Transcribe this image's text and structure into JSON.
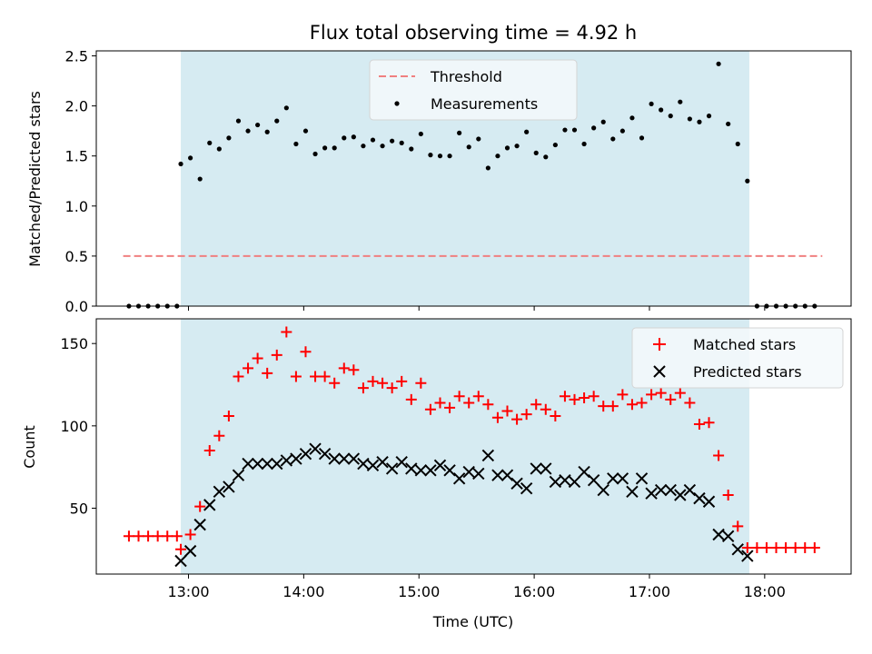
{
  "chart_data": [
    {
      "type": "scatter",
      "title": "Flux total observing time = 4.92 h",
      "xlabel": "",
      "ylabel": "Matched/Predicted stars",
      "xlim": [
        "12:12",
        "18:45"
      ],
      "ylim": [
        0,
        2.55
      ],
      "yticks": [
        "0.0",
        "0.5",
        "1.0",
        "1.5",
        "2.0",
        "2.5"
      ],
      "legend_position": "upper-center",
      "highlight_span": {
        "start": "12:56",
        "end": "17:52",
        "color": "#add8e6"
      },
      "threshold": {
        "name": "Threshold",
        "value": 0.5,
        "x_start": "12:26",
        "x_end": "18:30",
        "color": "#f08080",
        "style": "dashed"
      },
      "series": [
        {
          "name": "Measurements",
          "color": "#000000",
          "marker": "dot",
          "points": [
            [
              "12:29",
              0
            ],
            [
              "12:34",
              0
            ],
            [
              "12:39",
              0
            ],
            [
              "12:44",
              0
            ],
            [
              "12:49",
              0
            ],
            [
              "12:54",
              0
            ],
            [
              "12:56",
              1.42
            ],
            [
              "13:01",
              1.48
            ],
            [
              "13:06",
              1.27
            ],
            [
              "13:11",
              1.63
            ],
            [
              "13:16",
              1.57
            ],
            [
              "13:21",
              1.68
            ],
            [
              "13:26",
              1.85
            ],
            [
              "13:31",
              1.75
            ],
            [
              "13:36",
              1.81
            ],
            [
              "13:41",
              1.74
            ],
            [
              "13:46",
              1.85
            ],
            [
              "13:51",
              1.98
            ],
            [
              "13:56",
              1.62
            ],
            [
              "14:01",
              1.75
            ],
            [
              "14:06",
              1.52
            ],
            [
              "14:11",
              1.58
            ],
            [
              "14:16",
              1.58
            ],
            [
              "14:21",
              1.68
            ],
            [
              "14:26",
              1.69
            ],
            [
              "14:31",
              1.6
            ],
            [
              "14:36",
              1.66
            ],
            [
              "14:41",
              1.6
            ],
            [
              "14:46",
              1.65
            ],
            [
              "14:51",
              1.63
            ],
            [
              "14:56",
              1.57
            ],
            [
              "15:01",
              1.72
            ],
            [
              "15:06",
              1.51
            ],
            [
              "15:11",
              1.5
            ],
            [
              "15:16",
              1.5
            ],
            [
              "15:21",
              1.73
            ],
            [
              "15:26",
              1.59
            ],
            [
              "15:31",
              1.67
            ],
            [
              "15:36",
              1.38
            ],
            [
              "15:41",
              1.5
            ],
            [
              "15:46",
              1.58
            ],
            [
              "15:51",
              1.6
            ],
            [
              "15:56",
              1.74
            ],
            [
              "16:01",
              1.53
            ],
            [
              "16:06",
              1.49
            ],
            [
              "16:11",
              1.61
            ],
            [
              "16:16",
              1.76
            ],
            [
              "16:21",
              1.76
            ],
            [
              "16:26",
              1.62
            ],
            [
              "16:31",
              1.78
            ],
            [
              "16:36",
              1.84
            ],
            [
              "16:41",
              1.67
            ],
            [
              "16:46",
              1.75
            ],
            [
              "16:51",
              1.88
            ],
            [
              "16:56",
              1.68
            ],
            [
              "17:01",
              2.02
            ],
            [
              "17:06",
              1.96
            ],
            [
              "17:11",
              1.9
            ],
            [
              "17:16",
              2.04
            ],
            [
              "17:21",
              1.87
            ],
            [
              "17:26",
              1.84
            ],
            [
              "17:31",
              1.9
            ],
            [
              "17:36",
              2.42
            ],
            [
              "17:41",
              1.82
            ],
            [
              "17:46",
              1.62
            ],
            [
              "17:51",
              1.25
            ],
            [
              "17:56",
              0
            ],
            [
              "18:01",
              0
            ],
            [
              "18:06",
              0
            ],
            [
              "18:11",
              0
            ],
            [
              "18:16",
              0
            ],
            [
              "18:21",
              0
            ],
            [
              "18:26",
              0
            ]
          ]
        }
      ]
    },
    {
      "type": "scatter",
      "title": "",
      "xlabel": "Time (UTC)",
      "ylabel": "Count",
      "xlim": [
        "12:12",
        "18:45"
      ],
      "ylim": [
        10,
        165
      ],
      "yticks": [
        "50",
        "100",
        "150"
      ],
      "xticks": [
        "13:00",
        "14:00",
        "15:00",
        "16:00",
        "17:00",
        "18:00"
      ],
      "legend_position": "upper-right",
      "highlight_span": {
        "start": "12:56",
        "end": "17:52",
        "color": "#add8e6"
      },
      "series": [
        {
          "name": "Matched stars",
          "color": "#ff0000",
          "marker": "plus",
          "points": [
            [
              "12:29",
              33
            ],
            [
              "12:34",
              33
            ],
            [
              "12:39",
              33
            ],
            [
              "12:44",
              33
            ],
            [
              "12:49",
              33
            ],
            [
              "12:54",
              33
            ],
            [
              "12:56",
              25
            ],
            [
              "13:01",
              34
            ],
            [
              "13:06",
              51
            ],
            [
              "13:11",
              85
            ],
            [
              "13:16",
              94
            ],
            [
              "13:21",
              106
            ],
            [
              "13:26",
              130
            ],
            [
              "13:31",
              135
            ],
            [
              "13:36",
              141
            ],
            [
              "13:41",
              132
            ],
            [
              "13:46",
              143
            ],
            [
              "13:51",
              157
            ],
            [
              "13:56",
              130
            ],
            [
              "14:01",
              145
            ],
            [
              "14:06",
              130
            ],
            [
              "14:11",
              130
            ],
            [
              "14:16",
              126
            ],
            [
              "14:21",
              135
            ],
            [
              "14:26",
              134
            ],
            [
              "14:31",
              123
            ],
            [
              "14:36",
              127
            ],
            [
              "14:41",
              126
            ],
            [
              "14:46",
              123
            ],
            [
              "14:51",
              127
            ],
            [
              "14:56",
              116
            ],
            [
              "15:01",
              126
            ],
            [
              "15:06",
              110
            ],
            [
              "15:11",
              114
            ],
            [
              "15:16",
              111
            ],
            [
              "15:21",
              118
            ],
            [
              "15:26",
              114
            ],
            [
              "15:31",
              118
            ],
            [
              "15:36",
              113
            ],
            [
              "15:41",
              105
            ],
            [
              "15:46",
              109
            ],
            [
              "15:51",
              104
            ],
            [
              "15:56",
              107
            ],
            [
              "16:01",
              113
            ],
            [
              "16:06",
              110
            ],
            [
              "16:11",
              106
            ],
            [
              "16:16",
              118
            ],
            [
              "16:21",
              116
            ],
            [
              "16:26",
              117
            ],
            [
              "16:31",
              118
            ],
            [
              "16:36",
              112
            ],
            [
              "16:41",
              112
            ],
            [
              "16:46",
              119
            ],
            [
              "16:51",
              113
            ],
            [
              "16:56",
              114
            ],
            [
              "17:01",
              119
            ],
            [
              "17:06",
              120
            ],
            [
              "17:11",
              116
            ],
            [
              "17:16",
              120
            ],
            [
              "17:21",
              114
            ],
            [
              "17:26",
              101
            ],
            [
              "17:31",
              102
            ],
            [
              "17:36",
              82
            ],
            [
              "17:41",
              58
            ],
            [
              "17:46",
              39
            ],
            [
              "17:51",
              26
            ],
            [
              "17:56",
              26
            ],
            [
              "18:01",
              26
            ],
            [
              "18:06",
              26
            ],
            [
              "18:11",
              26
            ],
            [
              "18:16",
              26
            ],
            [
              "18:21",
              26
            ],
            [
              "18:26",
              26
            ]
          ]
        },
        {
          "name": "Predicted stars",
          "color": "#000000",
          "marker": "x",
          "points": [
            [
              "12:56",
              18
            ],
            [
              "13:01",
              24
            ],
            [
              "13:06",
              40
            ],
            [
              "13:11",
              52
            ],
            [
              "13:16",
              60
            ],
            [
              "13:21",
              63
            ],
            [
              "13:26",
              70
            ],
            [
              "13:31",
              77
            ],
            [
              "13:36",
              77
            ],
            [
              "13:41",
              77
            ],
            [
              "13:46",
              77
            ],
            [
              "13:51",
              79
            ],
            [
              "13:56",
              80
            ],
            [
              "14:01",
              83
            ],
            [
              "14:06",
              86
            ],
            [
              "14:11",
              83
            ],
            [
              "14:16",
              80
            ],
            [
              "14:21",
              80
            ],
            [
              "14:26",
              80
            ],
            [
              "14:31",
              77
            ],
            [
              "14:36",
              76
            ],
            [
              "14:41",
              78
            ],
            [
              "14:46",
              74
            ],
            [
              "14:51",
              78
            ],
            [
              "14:56",
              74
            ],
            [
              "15:01",
              73
            ],
            [
              "15:06",
              73
            ],
            [
              "15:11",
              76
            ],
            [
              "15:16",
              73
            ],
            [
              "15:21",
              68
            ],
            [
              "15:26",
              72
            ],
            [
              "15:31",
              71
            ],
            [
              "15:36",
              82
            ],
            [
              "15:41",
              70
            ],
            [
              "15:46",
              70
            ],
            [
              "15:51",
              65
            ],
            [
              "15:56",
              62
            ],
            [
              "16:01",
              74
            ],
            [
              "16:06",
              74
            ],
            [
              "16:11",
              66
            ],
            [
              "16:16",
              67
            ],
            [
              "16:21",
              66
            ],
            [
              "16:26",
              72
            ],
            [
              "16:31",
              67
            ],
            [
              "16:36",
              61
            ],
            [
              "16:41",
              68
            ],
            [
              "16:46",
              68
            ],
            [
              "16:51",
              60
            ],
            [
              "16:56",
              68
            ],
            [
              "17:01",
              59
            ],
            [
              "17:06",
              61
            ],
            [
              "17:11",
              61
            ],
            [
              "17:16",
              58
            ],
            [
              "17:21",
              61
            ],
            [
              "17:26",
              56
            ],
            [
              "17:31",
              54
            ],
            [
              "17:36",
              34
            ],
            [
              "17:41",
              33
            ],
            [
              "17:46",
              25
            ],
            [
              "17:51",
              21
            ]
          ]
        }
      ]
    }
  ]
}
